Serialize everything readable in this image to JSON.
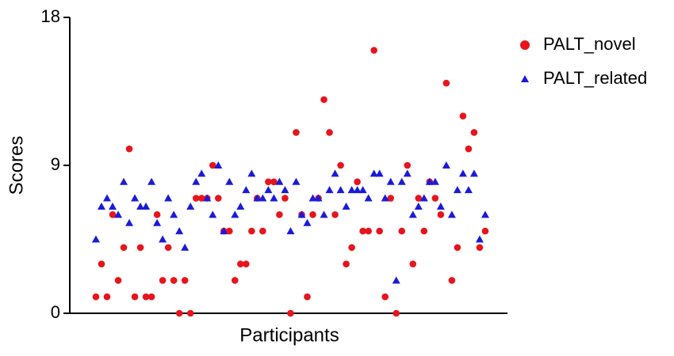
{
  "chart_data": {
    "type": "scatter",
    "x_label": "Participants",
    "y_label": "Scores",
    "x": [
      1,
      2,
      3,
      4,
      5,
      6,
      7,
      8,
      9,
      10,
      11,
      12,
      13,
      14,
      15,
      16,
      17,
      18,
      19,
      20,
      21,
      22,
      23,
      24,
      25,
      26,
      27,
      28,
      29,
      30,
      31,
      32,
      33,
      34,
      35,
      36,
      37,
      38,
      39,
      40,
      41,
      42,
      43,
      44,
      45,
      46,
      47,
      48,
      49,
      50,
      51,
      52,
      53,
      54,
      55,
      56,
      57,
      58,
      59,
      60,
      61,
      62,
      63,
      64,
      65,
      66,
      67,
      68,
      69,
      70,
      71
    ],
    "xlim": [
      -3.7,
      75
    ],
    "ylim": [
      0,
      18
    ],
    "yticks": [
      0,
      9,
      18
    ],
    "legend": "top-right",
    "series": [
      {
        "name": "PALT_novel",
        "color": "#e8141c",
        "marker": "circle",
        "values": [
          1,
          3,
          1,
          6,
          2,
          4,
          10,
          1,
          4,
          1,
          1,
          6,
          2,
          4,
          2,
          0,
          2,
          0,
          7,
          7,
          7,
          9,
          7,
          5,
          5,
          2,
          3,
          3,
          5,
          7,
          5,
          8,
          8,
          6,
          7,
          0,
          11,
          6,
          1,
          6,
          7,
          13,
          11,
          6,
          9,
          3,
          4,
          8,
          5,
          5,
          16,
          5,
          1,
          7,
          0,
          5,
          9,
          3,
          7,
          5,
          8,
          7,
          6,
          14,
          2,
          4,
          12,
          10,
          11,
          4,
          5
        ]
      },
      {
        "name": "PALT_related",
        "color": "#1a1adb",
        "marker": "triangle",
        "values": [
          4.5,
          6.5,
          7,
          6.5,
          6,
          8,
          5.5,
          7,
          6.5,
          6.5,
          8,
          5.5,
          4.5,
          7,
          6,
          5,
          4,
          6.5,
          8,
          8.5,
          7,
          6,
          9,
          5,
          8,
          6,
          6.5,
          7.5,
          8.5,
          7,
          7,
          7.5,
          7,
          8,
          7.5,
          5,
          8,
          6,
          5.5,
          7,
          7,
          6,
          7.5,
          8.5,
          7.5,
          6.5,
          7.5,
          7.5,
          7.5,
          7,
          8.5,
          8.5,
          7,
          8,
          2,
          8,
          8.5,
          6,
          6.5,
          7,
          8,
          8,
          6.5,
          9,
          6,
          7.5,
          8.5,
          7.5,
          8.5,
          4.5,
          6
        ]
      }
    ]
  }
}
